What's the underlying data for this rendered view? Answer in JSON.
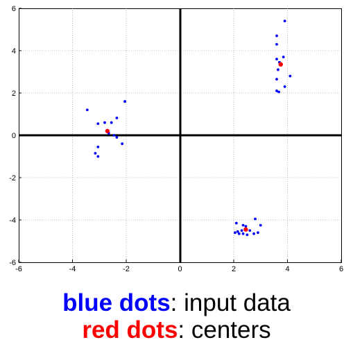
{
  "chart_data": {
    "type": "scatter",
    "xlim": [
      -6,
      6
    ],
    "ylim": [
      -6,
      6
    ],
    "x_ticks": [
      "-6",
      "-4",
      "-2",
      "0",
      "2",
      "4",
      "6"
    ],
    "y_ticks": [
      "6",
      "4",
      "2",
      "0",
      "-2",
      "-4",
      "-6"
    ],
    "grid": true,
    "zero_axes": true,
    "series": [
      {
        "color": "#0000ff",
        "points": [
          [
            -3.45,
            1.2
          ],
          [
            -2.05,
            1.6
          ],
          [
            -2.35,
            0.82
          ],
          [
            -3.05,
            0.55
          ],
          [
            -2.8,
            0.6
          ],
          [
            -2.55,
            0.6
          ],
          [
            -2.65,
            0.1
          ],
          [
            -2.45,
            0.0
          ],
          [
            -2.35,
            -0.1
          ],
          [
            -2.15,
            -0.4
          ],
          [
            -3.05,
            -0.55
          ],
          [
            -3.15,
            -0.85
          ],
          [
            -3.05,
            -1.0
          ],
          [
            3.6,
            4.7
          ],
          [
            3.6,
            4.3
          ],
          [
            3.9,
            5.4
          ],
          [
            3.6,
            3.6
          ],
          [
            3.85,
            3.7
          ],
          [
            3.7,
            3.45
          ],
          [
            3.65,
            3.1
          ],
          [
            4.1,
            2.8
          ],
          [
            3.6,
            2.65
          ],
          [
            3.9,
            2.3
          ],
          [
            3.6,
            2.1
          ],
          [
            3.68,
            2.05
          ],
          [
            2.1,
            -4.15
          ],
          [
            2.8,
            -3.95
          ],
          [
            2.35,
            -4.25
          ],
          [
            2.45,
            -4.3
          ],
          [
            3.0,
            -4.25
          ],
          [
            2.3,
            -4.5
          ],
          [
            2.15,
            -4.55
          ],
          [
            2.05,
            -4.6
          ],
          [
            2.6,
            -4.5
          ],
          [
            2.2,
            -4.65
          ],
          [
            2.35,
            -4.65
          ],
          [
            2.5,
            -4.7
          ],
          [
            2.75,
            -4.65
          ],
          [
            2.9,
            -4.6
          ]
        ]
      },
      {
        "color": "#ff0000",
        "points": [
          [
            -2.7,
            0.2
          ],
          [
            3.75,
            3.35
          ],
          [
            2.45,
            -4.45
          ]
        ]
      }
    ]
  },
  "caption": {
    "line1_strong": "blue dots",
    "line1_rest": ": input data",
    "line2_strong": "red dots",
    "line2_rest": ": centers",
    "blue": "#0000ff",
    "red": "#ff0000"
  }
}
